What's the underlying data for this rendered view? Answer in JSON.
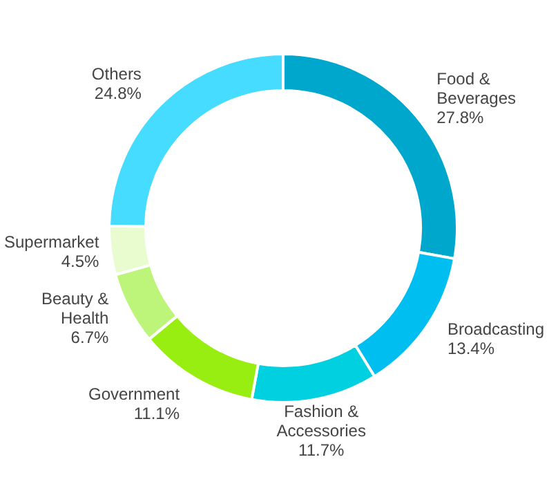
{
  "chart_data": {
    "type": "donut",
    "categories": [
      "Food & Beverages",
      "Broadcasting",
      "Fashion & Accessories",
      "Government",
      "Beauty & Health",
      "Supermarket",
      "Others"
    ],
    "values": [
      27.8,
      13.4,
      11.7,
      11.1,
      6.7,
      4.5,
      24.8
    ],
    "value_labels": [
      "27.8%",
      "13.4%",
      "11.7%",
      "11.1%",
      "6.7%",
      "4.5%",
      "24.8%"
    ],
    "colors": [
      "#00a7cc",
      "#00bff0",
      "#00d0e0",
      "#99ee11",
      "#bdf57a",
      "#e8fcd0",
      "#45dcff"
    ],
    "legend": false
  }
}
